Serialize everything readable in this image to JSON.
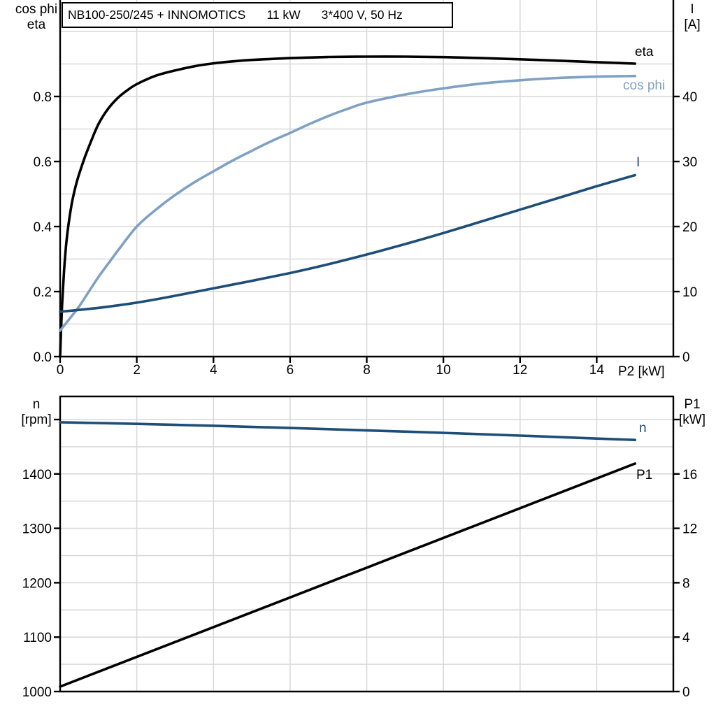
{
  "title_box": {
    "model": "NB100-250/245 + INNOMOTICS",
    "power": "11 kW",
    "supply": "3*400 V, 50 Hz"
  },
  "headers": {
    "top_left_line1": "cos phi",
    "top_left_line2": "eta",
    "top_right_line1": "I",
    "top_right_line2": "[A]",
    "bottom_left_line1": "n",
    "bottom_left_line2": "[rpm]",
    "bottom_right_line1": "P1",
    "bottom_right_line2": "[kW]",
    "x_axis_label": "P2 [kW]"
  },
  "curve_labels": {
    "eta": "eta",
    "cos_phi": "cos phi",
    "current": "I",
    "speed": "n",
    "input_power": "P1"
  },
  "colors": {
    "black": "#000000",
    "light_blue": "#7fa1c4",
    "dark_blue": "#1d4e79",
    "grid": "#d9d9d9",
    "background": "#ffffff"
  },
  "chart_data": [
    {
      "type": "line",
      "title": "NB100-250/245 + INNOMOTICS 11 kW 3*400 V, 50 Hz",
      "xlabel": "P2 [kW]",
      "xlim": [
        0,
        16
      ],
      "xticks": [
        0,
        2,
        4,
        6,
        8,
        10,
        12,
        14
      ],
      "ylabel_left": "cos phi / eta",
      "ylim_left": [
        0,
        1.0
      ],
      "yticks_left": [
        "0.0",
        "0.2",
        "0.4",
        "0.6",
        "0.8"
      ],
      "ylabel_right": "I [A]",
      "ylim_right": [
        0,
        50
      ],
      "yticks_right": [
        0,
        10,
        20,
        30,
        40
      ],
      "grid": "on",
      "legend_position": "labels-at-right",
      "series": [
        {
          "name": "eta",
          "axis": "left",
          "color_key": "black",
          "x": [
            0,
            0.02,
            0.05,
            0.1,
            0.15,
            0.2,
            0.3,
            0.4,
            0.5,
            0.65,
            0.8,
            1.0,
            1.25,
            1.5,
            1.75,
            2,
            2.5,
            3,
            3.5,
            4,
            4.5,
            5,
            6,
            7,
            8,
            9,
            10,
            11,
            12,
            13,
            14,
            15
          ],
          "y": [
            0,
            0.07,
            0.155,
            0.26,
            0.335,
            0.39,
            0.468,
            0.522,
            0.563,
            0.615,
            0.66,
            0.715,
            0.762,
            0.795,
            0.819,
            0.838,
            0.864,
            0.88,
            0.893,
            0.902,
            0.908,
            0.9125,
            0.918,
            0.9215,
            0.9225,
            0.9225,
            0.921,
            0.918,
            0.9145,
            0.91,
            0.9055,
            0.901
          ]
        },
        {
          "name": "cos phi",
          "axis": "left",
          "color_key": "light_blue",
          "x": [
            0,
            0.25,
            0.5,
            0.75,
            1,
            1.25,
            1.5,
            2,
            2.5,
            3,
            3.5,
            4,
            4.5,
            5,
            5.5,
            6,
            6.5,
            7,
            7.5,
            8,
            9,
            10,
            11,
            12,
            13,
            14,
            15
          ],
          "y": [
            0.08,
            0.117,
            0.155,
            0.2,
            0.245,
            0.285,
            0.325,
            0.4,
            0.452,
            0.497,
            0.536,
            0.57,
            0.603,
            0.633,
            0.662,
            0.688,
            0.715,
            0.74,
            0.762,
            0.781,
            0.806,
            0.825,
            0.84,
            0.85,
            0.857,
            0.861,
            0.863
          ]
        },
        {
          "name": "I",
          "axis": "right",
          "color_key": "dark_blue",
          "x": [
            0,
            1,
            2,
            3,
            4,
            5,
            6,
            7,
            8,
            9,
            10,
            11,
            12,
            13,
            14,
            15
          ],
          "y": [
            6.9,
            7.5,
            8.3,
            9.35,
            10.5,
            11.65,
            12.85,
            14.2,
            15.7,
            17.3,
            19.0,
            20.8,
            22.6,
            24.4,
            26.2,
            27.9
          ]
        }
      ]
    },
    {
      "type": "line",
      "title": "",
      "xlabel": "P2 [kW]",
      "xlim": [
        0,
        16
      ],
      "xticks": [],
      "ylabel_left": "n [rpm]",
      "ylim_left": [
        985,
        1540
      ],
      "yticks_left": [
        1000,
        1100,
        1200,
        1300,
        1400
      ],
      "extra_unlabeled_tick_left": 1500,
      "ylabel_right": "P1 [kW]",
      "ylim_right": [
        -0.7,
        21.5
      ],
      "yticks_right": [
        0,
        4,
        8,
        12,
        16
      ],
      "extra_unlabeled_tick_right": 20,
      "grid": "on",
      "legend_position": "labels-at-right",
      "series": [
        {
          "name": "n",
          "axis": "left",
          "color_key": "dark_blue",
          "x": [
            0,
            2,
            4,
            6,
            8,
            10,
            12,
            14,
            15
          ],
          "y": [
            1495,
            1492,
            1488.5,
            1484.5,
            1480,
            1475.5,
            1470.5,
            1465,
            1462.5
          ]
        },
        {
          "name": "P1",
          "axis": "right",
          "color_key": "black",
          "x": [
            0,
            3,
            6,
            9,
            12,
            15
          ],
          "y": [
            0.36,
            3.64,
            6.92,
            10.2,
            13.48,
            16.76
          ]
        }
      ]
    }
  ]
}
